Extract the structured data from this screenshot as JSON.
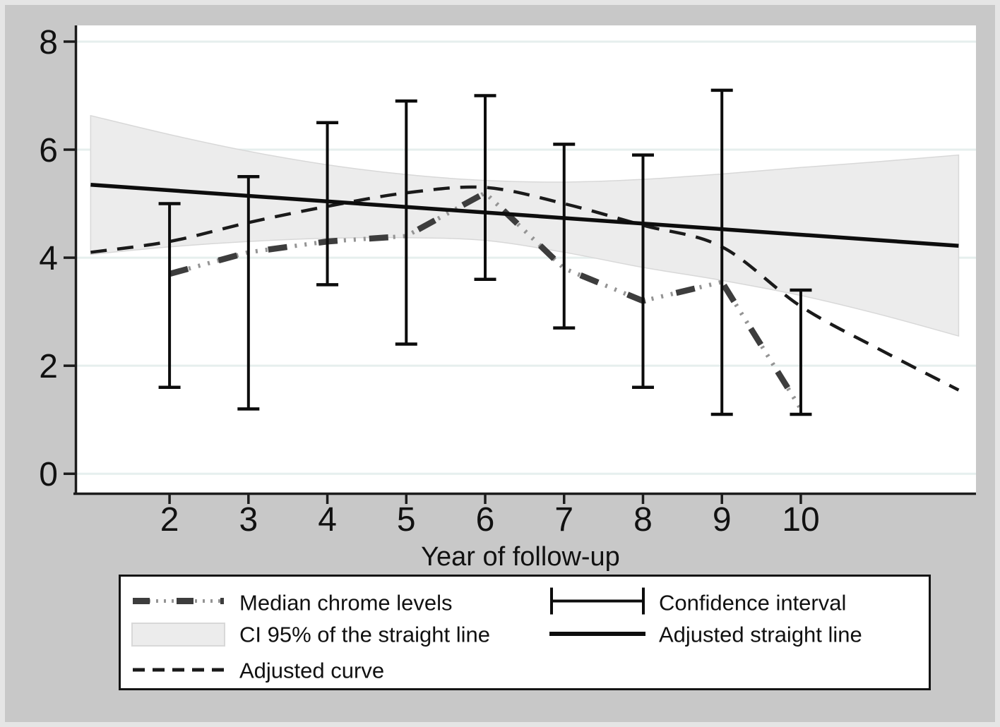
{
  "figure": {
    "background_color": "#c8c8c8",
    "edge_color": "#e5e5e5",
    "plot_background": "#ffffff",
    "gridline_color": "#e6efee",
    "axis_color": "#1c1c1c",
    "text_color": "#111111"
  },
  "chart_data": {
    "type": "line",
    "title": "",
    "xlabel": "Year of follow-up",
    "ylabel": "",
    "xlim": [
      0.8,
      12.22
    ],
    "ylim": [
      -0.35,
      8.3
    ],
    "x_ticks": [
      2,
      3,
      4,
      5,
      6,
      7,
      8,
      9,
      10
    ],
    "y_ticks": [
      8,
      6,
      4,
      2,
      0
    ],
    "grid": "horizontal",
    "legend_position": "bottom",
    "series": [
      {
        "name": "Adjusted straight line",
        "style": "solid",
        "color": "#0d0d0d",
        "x": [
          1,
          12
        ],
        "values": [
          5.35,
          4.22
        ]
      },
      {
        "name": "Adjusted curve",
        "style": "dashed",
        "color": "#1a1a1a",
        "x": [
          1,
          2,
          3,
          4,
          5,
          6,
          7,
          8,
          9,
          10,
          11,
          12
        ],
        "values": [
          4.1,
          4.3,
          4.65,
          4.95,
          5.2,
          5.3,
          5.0,
          4.6,
          4.2,
          3.1,
          2.3,
          1.55
        ]
      },
      {
        "name": "Median chrome levels",
        "style": "dash-dot-dot",
        "color": "#3d3d3d",
        "tick_color": "#949494",
        "x": [
          2,
          3,
          4,
          5,
          6,
          7,
          8,
          9,
          10
        ],
        "values": [
          3.7,
          4.1,
          4.3,
          4.4,
          5.2,
          3.8,
          3.2,
          3.55,
          1.2
        ]
      }
    ],
    "ci_band": {
      "name": "CI 95% of the straight line",
      "fill": "#ececec",
      "edge": "#d8d8d8",
      "x": [
        1,
        2,
        3,
        4,
        5,
        6,
        7,
        8,
        9,
        10,
        11,
        12
      ],
      "upper": [
        6.63,
        6.28,
        5.97,
        5.72,
        5.54,
        5.43,
        5.4,
        5.45,
        5.55,
        5.67,
        5.78,
        5.9
      ],
      "lower": [
        4.06,
        4.2,
        4.3,
        4.36,
        4.37,
        4.32,
        4.1,
        3.82,
        3.58,
        3.3,
        2.95,
        2.55
      ]
    },
    "error_bars": {
      "name": "Confidence interval",
      "color": "#0c0c0c",
      "x": [
        2,
        3,
        4,
        5,
        6,
        7,
        8,
        9,
        10
      ],
      "low": [
        1.6,
        1.2,
        3.5,
        2.4,
        3.6,
        2.7,
        1.6,
        1.1,
        1.1
      ],
      "high": [
        5.0,
        5.5,
        6.5,
        6.9,
        7.0,
        6.1,
        5.9,
        7.1,
        3.4
      ]
    }
  },
  "legend": {
    "items": [
      {
        "label": "Median chrome levels",
        "key": "dash-dot-dot"
      },
      {
        "label": "CI 95% of the straight line",
        "key": "band"
      },
      {
        "label": "Adjusted curve",
        "key": "dashed"
      },
      {
        "label": "Confidence interval",
        "key": "error-bar"
      },
      {
        "label": "Adjusted straight line",
        "key": "solid"
      }
    ]
  }
}
